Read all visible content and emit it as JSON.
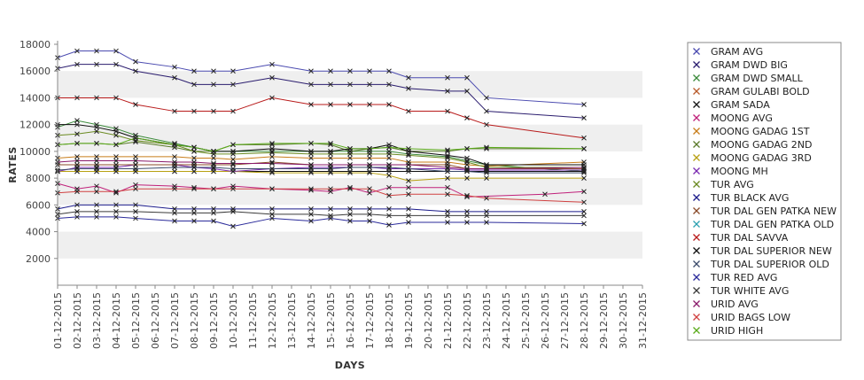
{
  "chart_data": {
    "type": "line",
    "title": "",
    "xlabel": "DAYS",
    "ylabel": "RATES",
    "ylim": [
      0,
      18000
    ],
    "yticks": [
      2000,
      4000,
      6000,
      8000,
      10000,
      12000,
      14000,
      16000,
      18000
    ],
    "grid": "alternating horizontal bands",
    "legend_position": "right",
    "categories": [
      "01-12-2015",
      "02-12-2015",
      "03-12-2015",
      "04-12-2015",
      "05-12-2015",
      "06-12-2015",
      "07-12-2015",
      "08-12-2015",
      "09-12-2015",
      "10-12-2015",
      "11-12-2015",
      "12-12-2015",
      "13-12-2015",
      "14-12-2015",
      "15-12-2015",
      "16-12-2015",
      "17-12-2015",
      "18-12-2015",
      "19-12-2015",
      "20-12-2015",
      "21-12-2015",
      "22-12-2015",
      "23-12-2015",
      "24-12-2015",
      "25-12-2015",
      "26-12-2015",
      "27-12-2015",
      "28-12-2015",
      "29-12-2015",
      "30-12-2015",
      "31-12-2015"
    ],
    "series": [
      {
        "name": "GRAM AVG",
        "color": "#4b4bb0",
        "values": [
          17000,
          17500,
          17500,
          17500,
          16700,
          null,
          16300,
          16000,
          16000,
          16000,
          null,
          16500,
          null,
          16000,
          16000,
          16000,
          16000,
          16000,
          15500,
          null,
          15500,
          15500,
          14000,
          null,
          null,
          null,
          null,
          13500,
          null,
          null,
          null
        ]
      },
      {
        "name": "GRAM DWD BIG",
        "color": "#2a1c6e",
        "values": [
          16200,
          16500,
          16500,
          16500,
          16000,
          null,
          15500,
          15000,
          15000,
          15000,
          null,
          15500,
          null,
          15000,
          15000,
          15000,
          15000,
          15000,
          14700,
          null,
          14500,
          14500,
          13000,
          null,
          null,
          null,
          null,
          12500,
          null,
          null,
          null
        ]
      },
      {
        "name": "GRAM DWD SMALL",
        "color": "#3a8a3a",
        "values": [
          11800,
          12300,
          12000,
          11700,
          11200,
          null,
          10600,
          10300,
          10000,
          10000,
          null,
          10000,
          null,
          10000,
          10000,
          10000,
          10000,
          10000,
          9800,
          null,
          9600,
          9300,
          9000,
          null,
          null,
          null,
          null,
          8500,
          null,
          null,
          null
        ]
      },
      {
        "name": "GRAM GULABI BOLD",
        "color": "#b85a2a",
        "values": [
          null,
          null,
          null,
          null,
          null,
          null,
          null,
          null,
          null,
          null,
          null,
          null,
          null,
          null,
          null,
          null,
          null,
          null,
          null,
          null,
          null,
          null,
          null,
          null,
          null,
          null,
          null,
          null,
          null,
          null,
          null
        ]
      },
      {
        "name": "GRAM SADA",
        "color": "#111111",
        "values": [
          8500,
          8500,
          8500,
          8500,
          8500,
          null,
          8500,
          8500,
          8500,
          8500,
          null,
          8500,
          null,
          8500,
          8500,
          8500,
          8500,
          8500,
          8500,
          null,
          8500,
          8500,
          8500,
          null,
          null,
          null,
          null,
          8500,
          null,
          null,
          null
        ]
      },
      {
        "name": "MOONG AVG",
        "color": "#c0207a",
        "values": [
          7600,
          7200,
          7400,
          6900,
          7500,
          null,
          7400,
          7300,
          7200,
          7400,
          null,
          7200,
          null,
          7100,
          7000,
          7300,
          6900,
          7300,
          7300,
          null,
          7300,
          6600,
          null,
          null,
          null,
          6800,
          null,
          7000,
          null,
          null,
          null
        ]
      },
      {
        "name": "MOONG GADAG 1ST",
        "color": "#c87d1a",
        "values": [
          9500,
          9600,
          9600,
          9600,
          9600,
          null,
          9600,
          9500,
          9500,
          9400,
          null,
          9600,
          null,
          9500,
          9500,
          9500,
          9500,
          9500,
          9200,
          null,
          9200,
          9000,
          8900,
          null,
          null,
          null,
          null,
          9200,
          null,
          null,
          null
        ]
      },
      {
        "name": "MOONG GADAG 2ND",
        "color": "#5a7a2a",
        "values": [
          10500,
          10600,
          10600,
          10500,
          10700,
          null,
          10300,
          10000,
          10000,
          10500,
          null,
          10500,
          null,
          10600,
          10500,
          10000,
          10200,
          10300,
          10000,
          null,
          10000,
          10200,
          10200,
          null,
          null,
          null,
          null,
          10200,
          null,
          null,
          null
        ]
      },
      {
        "name": "MOONG GADAG 3RD",
        "color": "#b8a010",
        "values": [
          8500,
          8500,
          8500,
          8500,
          8500,
          null,
          8500,
          8500,
          8500,
          8500,
          null,
          8400,
          null,
          8400,
          8400,
          8400,
          8400,
          8200,
          7800,
          null,
          8000,
          8000,
          8000,
          null,
          null,
          null,
          null,
          8000,
          null,
          null,
          null
        ]
      },
      {
        "name": "MOONG MH",
        "color": "#7a2ab0",
        "values": [
          8500,
          8800,
          8800,
          8800,
          9000,
          null,
          9000,
          8800,
          8700,
          8500,
          null,
          8700,
          null,
          8800,
          8800,
          8800,
          8800,
          8700,
          8700,
          null,
          8700,
          8600,
          8600,
          null,
          null,
          null,
          null,
          8600,
          null,
          null,
          null
        ]
      },
      {
        "name": "TUR AVG",
        "color": "#6a8a20",
        "values": [
          11200,
          11300,
          11500,
          11200,
          10800,
          null,
          10500,
          10000,
          9800,
          9800,
          null,
          9900,
          null,
          9800,
          9800,
          9800,
          9800,
          9800,
          9700,
          null,
          9500,
          9200,
          8800,
          null,
          null,
          null,
          null,
          8800,
          null,
          null,
          null
        ]
      },
      {
        "name": "TUR BLACK AVG",
        "color": "#1a1a8a",
        "values": [
          5700,
          6000,
          6000,
          6000,
          6000,
          null,
          5700,
          5700,
          5700,
          5700,
          null,
          5700,
          null,
          5700,
          5700,
          5700,
          5700,
          5700,
          5700,
          null,
          5500,
          5500,
          5500,
          null,
          null,
          null,
          null,
          5500,
          null,
          null,
          null
        ]
      },
      {
        "name": "TUR DAL GEN PATKA NEW",
        "color": "#8a4a2a",
        "values": [
          9000,
          9000,
          9000,
          9000,
          9000,
          null,
          9000,
          9000,
          9000,
          9000,
          null,
          9200,
          null,
          9000,
          9000,
          9000,
          9000,
          9000,
          9000,
          null,
          9000,
          8700,
          8700,
          null,
          null,
          null,
          null,
          8700,
          null,
          null,
          null
        ]
      },
      {
        "name": "TUR DAL GEN PATKA OLD",
        "color": "#2aa0b0",
        "values": [
          null,
          null,
          null,
          null,
          null,
          null,
          null,
          null,
          null,
          null,
          null,
          null,
          null,
          null,
          null,
          null,
          null,
          null,
          null,
          null,
          null,
          null,
          null,
          null,
          null,
          null,
          null,
          null,
          null,
          null,
          null
        ]
      },
      {
        "name": "TUR DAL SAVVA",
        "color": "#b81a1a",
        "values": [
          14000,
          14000,
          14000,
          14000,
          13500,
          null,
          13000,
          13000,
          13000,
          13000,
          null,
          14000,
          null,
          13500,
          13500,
          13500,
          13500,
          13500,
          13000,
          null,
          13000,
          12500,
          12000,
          null,
          null,
          null,
          null,
          11000,
          null,
          null,
          null
        ]
      },
      {
        "name": "TUR DAL SUPERIOR NEW",
        "color": "#0a0a0a",
        "values": [
          12000,
          12000,
          11800,
          11500,
          11000,
          null,
          10500,
          10300,
          10000,
          10000,
          null,
          10200,
          null,
          10000,
          10000,
          10200,
          10200,
          10500,
          10000,
          null,
          9700,
          9500,
          9000,
          null,
          null,
          null,
          null,
          9000,
          null,
          null,
          null
        ]
      },
      {
        "name": "TUR DAL SUPERIOR OLD",
        "color": "#3a4a6a",
        "values": [
          8600,
          8700,
          8700,
          8700,
          8700,
          null,
          8800,
          8800,
          8800,
          8700,
          null,
          8700,
          null,
          8700,
          8700,
          8800,
          8800,
          8800,
          8700,
          null,
          8500,
          8500,
          8400,
          null,
          null,
          null,
          null,
          8400,
          null,
          null,
          null
        ]
      },
      {
        "name": "TUR RED AVG",
        "color": "#2a2a9a",
        "values": [
          5000,
          5100,
          5100,
          5100,
          5000,
          null,
          4800,
          4800,
          4800,
          4400,
          null,
          5000,
          null,
          4800,
          5000,
          4800,
          4800,
          4500,
          4700,
          null,
          4700,
          4700,
          4700,
          null,
          null,
          null,
          null,
          4600,
          null,
          null,
          null
        ]
      },
      {
        "name": "TUR WHITE AVG",
        "color": "#3a3a3a",
        "values": [
          5300,
          5500,
          5500,
          5500,
          5500,
          null,
          5400,
          5400,
          5400,
          5500,
          null,
          5300,
          null,
          5300,
          5200,
          5300,
          5300,
          5200,
          5200,
          null,
          5200,
          5200,
          5200,
          null,
          null,
          null,
          null,
          5200,
          null,
          null,
          null
        ]
      },
      {
        "name": "URID AVG",
        "color": "#8a1a6a",
        "values": [
          9200,
          9300,
          9300,
          9300,
          9300,
          null,
          9200,
          9200,
          9100,
          9100,
          null,
          9100,
          null,
          9000,
          9000,
          9000,
          9000,
          9000,
          9000,
          null,
          8800,
          8700,
          8700,
          null,
          null,
          null,
          null,
          8800,
          null,
          null,
          null
        ]
      },
      {
        "name": "URID BAGS LOW",
        "color": "#d04040",
        "values": [
          6900,
          7000,
          7000,
          7000,
          7200,
          null,
          7200,
          7200,
          7200,
          7200,
          null,
          7200,
          null,
          7200,
          7200,
          7200,
          7200,
          6700,
          6800,
          null,
          6800,
          6700,
          6500,
          null,
          null,
          null,
          null,
          6200,
          null,
          null,
          null
        ]
      },
      {
        "name": "URID HIGH",
        "color": "#5aaa1a",
        "values": [
          10500,
          10600,
          10600,
          10500,
          11000,
          null,
          10500,
          10300,
          10000,
          10500,
          null,
          10600,
          null,
          10600,
          10600,
          10200,
          10200,
          10300,
          10200,
          null,
          10100,
          10200,
          10300,
          null,
          null,
          null,
          null,
          10200,
          null,
          null,
          null
        ]
      }
    ]
  }
}
